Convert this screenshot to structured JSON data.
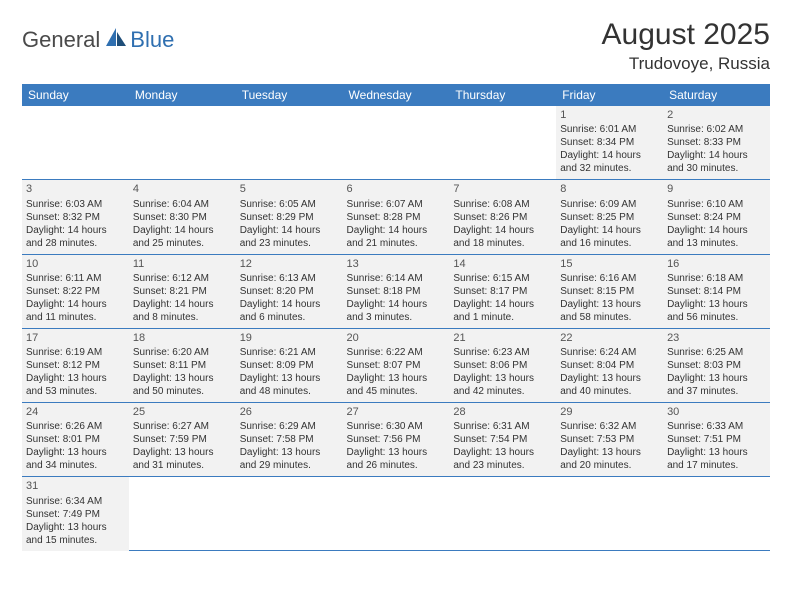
{
  "brand": {
    "part1": "General",
    "part2": "Blue"
  },
  "title": "August 2025",
  "location": "Trudovoye, Russia",
  "colors": {
    "header_bg": "#3b7bbf",
    "header_text": "#ffffff",
    "cell_bg": "#f2f2f2",
    "rule": "#3b7bbf",
    "brand_blue": "#2f6fb0",
    "text": "#333333"
  },
  "day_headers": [
    "Sunday",
    "Monday",
    "Tuesday",
    "Wednesday",
    "Thursday",
    "Friday",
    "Saturday"
  ],
  "weeks": [
    [
      null,
      null,
      null,
      null,
      null,
      {
        "n": "1",
        "sr": "Sunrise: 6:01 AM",
        "ss": "Sunset: 8:34 PM",
        "d1": "Daylight: 14 hours",
        "d2": "and 32 minutes."
      },
      {
        "n": "2",
        "sr": "Sunrise: 6:02 AM",
        "ss": "Sunset: 8:33 PM",
        "d1": "Daylight: 14 hours",
        "d2": "and 30 minutes."
      }
    ],
    [
      {
        "n": "3",
        "sr": "Sunrise: 6:03 AM",
        "ss": "Sunset: 8:32 PM",
        "d1": "Daylight: 14 hours",
        "d2": "and 28 minutes."
      },
      {
        "n": "4",
        "sr": "Sunrise: 6:04 AM",
        "ss": "Sunset: 8:30 PM",
        "d1": "Daylight: 14 hours",
        "d2": "and 25 minutes."
      },
      {
        "n": "5",
        "sr": "Sunrise: 6:05 AM",
        "ss": "Sunset: 8:29 PM",
        "d1": "Daylight: 14 hours",
        "d2": "and 23 minutes."
      },
      {
        "n": "6",
        "sr": "Sunrise: 6:07 AM",
        "ss": "Sunset: 8:28 PM",
        "d1": "Daylight: 14 hours",
        "d2": "and 21 minutes."
      },
      {
        "n": "7",
        "sr": "Sunrise: 6:08 AM",
        "ss": "Sunset: 8:26 PM",
        "d1": "Daylight: 14 hours",
        "d2": "and 18 minutes."
      },
      {
        "n": "8",
        "sr": "Sunrise: 6:09 AM",
        "ss": "Sunset: 8:25 PM",
        "d1": "Daylight: 14 hours",
        "d2": "and 16 minutes."
      },
      {
        "n": "9",
        "sr": "Sunrise: 6:10 AM",
        "ss": "Sunset: 8:24 PM",
        "d1": "Daylight: 14 hours",
        "d2": "and 13 minutes."
      }
    ],
    [
      {
        "n": "10",
        "sr": "Sunrise: 6:11 AM",
        "ss": "Sunset: 8:22 PM",
        "d1": "Daylight: 14 hours",
        "d2": "and 11 minutes."
      },
      {
        "n": "11",
        "sr": "Sunrise: 6:12 AM",
        "ss": "Sunset: 8:21 PM",
        "d1": "Daylight: 14 hours",
        "d2": "and 8 minutes."
      },
      {
        "n": "12",
        "sr": "Sunrise: 6:13 AM",
        "ss": "Sunset: 8:20 PM",
        "d1": "Daylight: 14 hours",
        "d2": "and 6 minutes."
      },
      {
        "n": "13",
        "sr": "Sunrise: 6:14 AM",
        "ss": "Sunset: 8:18 PM",
        "d1": "Daylight: 14 hours",
        "d2": "and 3 minutes."
      },
      {
        "n": "14",
        "sr": "Sunrise: 6:15 AM",
        "ss": "Sunset: 8:17 PM",
        "d1": "Daylight: 14 hours",
        "d2": "and 1 minute."
      },
      {
        "n": "15",
        "sr": "Sunrise: 6:16 AM",
        "ss": "Sunset: 8:15 PM",
        "d1": "Daylight: 13 hours",
        "d2": "and 58 minutes."
      },
      {
        "n": "16",
        "sr": "Sunrise: 6:18 AM",
        "ss": "Sunset: 8:14 PM",
        "d1": "Daylight: 13 hours",
        "d2": "and 56 minutes."
      }
    ],
    [
      {
        "n": "17",
        "sr": "Sunrise: 6:19 AM",
        "ss": "Sunset: 8:12 PM",
        "d1": "Daylight: 13 hours",
        "d2": "and 53 minutes."
      },
      {
        "n": "18",
        "sr": "Sunrise: 6:20 AM",
        "ss": "Sunset: 8:11 PM",
        "d1": "Daylight: 13 hours",
        "d2": "and 50 minutes."
      },
      {
        "n": "19",
        "sr": "Sunrise: 6:21 AM",
        "ss": "Sunset: 8:09 PM",
        "d1": "Daylight: 13 hours",
        "d2": "and 48 minutes."
      },
      {
        "n": "20",
        "sr": "Sunrise: 6:22 AM",
        "ss": "Sunset: 8:07 PM",
        "d1": "Daylight: 13 hours",
        "d2": "and 45 minutes."
      },
      {
        "n": "21",
        "sr": "Sunrise: 6:23 AM",
        "ss": "Sunset: 8:06 PM",
        "d1": "Daylight: 13 hours",
        "d2": "and 42 minutes."
      },
      {
        "n": "22",
        "sr": "Sunrise: 6:24 AM",
        "ss": "Sunset: 8:04 PM",
        "d1": "Daylight: 13 hours",
        "d2": "and 40 minutes."
      },
      {
        "n": "23",
        "sr": "Sunrise: 6:25 AM",
        "ss": "Sunset: 8:03 PM",
        "d1": "Daylight: 13 hours",
        "d2": "and 37 minutes."
      }
    ],
    [
      {
        "n": "24",
        "sr": "Sunrise: 6:26 AM",
        "ss": "Sunset: 8:01 PM",
        "d1": "Daylight: 13 hours",
        "d2": "and 34 minutes."
      },
      {
        "n": "25",
        "sr": "Sunrise: 6:27 AM",
        "ss": "Sunset: 7:59 PM",
        "d1": "Daylight: 13 hours",
        "d2": "and 31 minutes."
      },
      {
        "n": "26",
        "sr": "Sunrise: 6:29 AM",
        "ss": "Sunset: 7:58 PM",
        "d1": "Daylight: 13 hours",
        "d2": "and 29 minutes."
      },
      {
        "n": "27",
        "sr": "Sunrise: 6:30 AM",
        "ss": "Sunset: 7:56 PM",
        "d1": "Daylight: 13 hours",
        "d2": "and 26 minutes."
      },
      {
        "n": "28",
        "sr": "Sunrise: 6:31 AM",
        "ss": "Sunset: 7:54 PM",
        "d1": "Daylight: 13 hours",
        "d2": "and 23 minutes."
      },
      {
        "n": "29",
        "sr": "Sunrise: 6:32 AM",
        "ss": "Sunset: 7:53 PM",
        "d1": "Daylight: 13 hours",
        "d2": "and 20 minutes."
      },
      {
        "n": "30",
        "sr": "Sunrise: 6:33 AM",
        "ss": "Sunset: 7:51 PM",
        "d1": "Daylight: 13 hours",
        "d2": "and 17 minutes."
      }
    ],
    [
      {
        "n": "31",
        "sr": "Sunrise: 6:34 AM",
        "ss": "Sunset: 7:49 PM",
        "d1": "Daylight: 13 hours",
        "d2": "and 15 minutes."
      },
      null,
      null,
      null,
      null,
      null,
      null
    ]
  ]
}
